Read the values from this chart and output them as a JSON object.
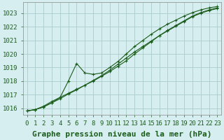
{
  "title": "Graphe pression niveau de la mer (hPa)",
  "bg_color": "#d6eef0",
  "grid_color": "#aacccc",
  "line_color": "#1a5c1a",
  "marker_color": "#1a5c1a",
  "x_values": [
    0,
    1,
    2,
    3,
    4,
    5,
    6,
    7,
    8,
    9,
    10,
    11,
    12,
    13,
    14,
    15,
    16,
    17,
    18,
    19,
    20,
    21,
    22,
    23
  ],
  "series": [
    [
      1015.8,
      1015.9,
      1016.1,
      1016.4,
      1016.7,
      1017.05,
      1017.35,
      1017.7,
      1018.05,
      1018.4,
      1018.8,
      1019.25,
      1019.7,
      1020.15,
      1020.55,
      1020.95,
      1021.35,
      1021.7,
      1022.05,
      1022.4,
      1022.75,
      1023.0,
      1023.2,
      1023.35
    ],
    [
      1015.8,
      1015.9,
      1016.1,
      1016.4,
      1016.8,
      1017.1,
      1017.4,
      1017.7,
      1018.0,
      1018.35,
      1018.7,
      1019.1,
      1019.5,
      1020.0,
      1020.45,
      1020.9,
      1021.35,
      1021.75,
      1022.1,
      1022.45,
      1022.8,
      1023.05,
      1023.25,
      1023.4
    ],
    [
      1015.8,
      1015.9,
      1016.15,
      1016.5,
      1016.8,
      1018.0,
      1019.3,
      1018.6,
      1018.5,
      1018.6,
      1019.0,
      1019.45,
      1020.0,
      1020.55,
      1021.0,
      1021.45,
      1021.85,
      1022.2,
      1022.5,
      1022.8,
      1023.05,
      1023.25,
      1023.4,
      1023.5
    ]
  ],
  "ylim": [
    1015.5,
    1023.8
  ],
  "yticks": [
    1016,
    1017,
    1018,
    1019,
    1020,
    1021,
    1022,
    1023
  ],
  "xlim": [
    -0.5,
    23.5
  ],
  "xticks": [
    0,
    1,
    2,
    3,
    4,
    5,
    6,
    7,
    8,
    9,
    10,
    11,
    12,
    13,
    14,
    15,
    16,
    17,
    18,
    19,
    20,
    21,
    22,
    23
  ],
  "title_fontsize": 8,
  "tick_fontsize": 6.5,
  "figsize": [
    3.2,
    2.0
  ],
  "dpi": 100
}
